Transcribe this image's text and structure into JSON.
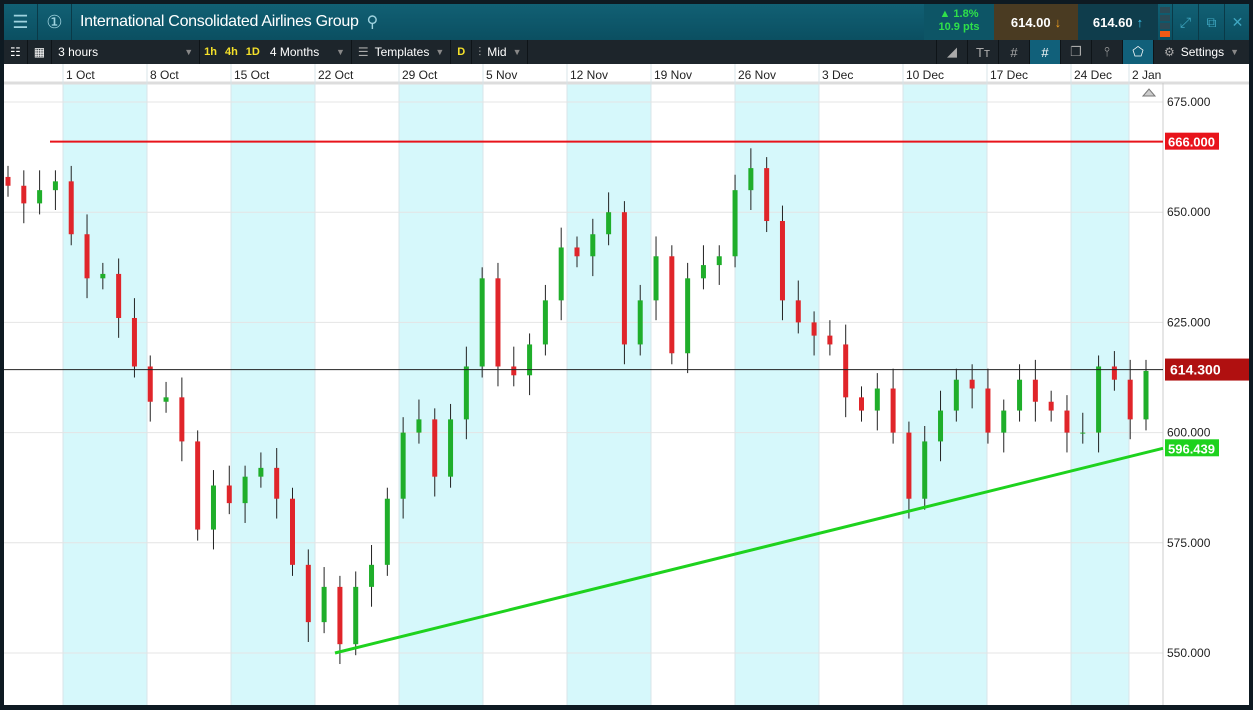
{
  "header": {
    "title": "International Consolidated Airlines Group",
    "change_pct": "▲ 1.8%",
    "change_pts": "10.9 pts",
    "sell": "614.00",
    "buy": "614.60"
  },
  "toolbar": {
    "interval": "3 hours",
    "quick": [
      "1h",
      "4h",
      "1D"
    ],
    "range": "4 Months",
    "templates": "Templates",
    "d": "D",
    "price_type": "Mid",
    "settings": "Settings"
  },
  "colors": {
    "up": "#1fae2a",
    "down": "#e0252a",
    "resistance": "#e8141b",
    "support": "#1ed21e",
    "band": "#d6f8fb"
  },
  "chart_data": {
    "type": "candlestick",
    "x_ticks": [
      "1 Oct",
      "8 Oct",
      "15 Oct",
      "22 Oct",
      "29 Oct",
      "5 Nov",
      "12 Nov",
      "19 Nov",
      "26 Nov",
      "3 Dec",
      "10 Dec",
      "17 Dec",
      "24 Dec",
      "2 Jan"
    ],
    "y_ticks": [
      "675.000",
      "650.000",
      "625.000",
      "600.000",
      "575.000",
      "550.000"
    ],
    "ylim": [
      541,
      678
    ],
    "closes": [
      656,
      652,
      655,
      657,
      645,
      635,
      636,
      626,
      615,
      607,
      608,
      598,
      578,
      588,
      584,
      590,
      592,
      585,
      570,
      557,
      565,
      552,
      565,
      570,
      585,
      600,
      603,
      590,
      603,
      615,
      635,
      615,
      613,
      620,
      630,
      642,
      640,
      645,
      650,
      620,
      630,
      640,
      618,
      635,
      638,
      640,
      655,
      660,
      648,
      630,
      625,
      622,
      620,
      608,
      605,
      610,
      600,
      585,
      598,
      605,
      612,
      610,
      600,
      605,
      612,
      607,
      605,
      600,
      600,
      615,
      612,
      603,
      614
    ],
    "resistance": {
      "value": 666,
      "label": "666.000"
    },
    "support": {
      "from": 550,
      "to": 596.439,
      "label": "596.439"
    },
    "current": {
      "value": 614.3,
      "label": "614.300"
    }
  }
}
